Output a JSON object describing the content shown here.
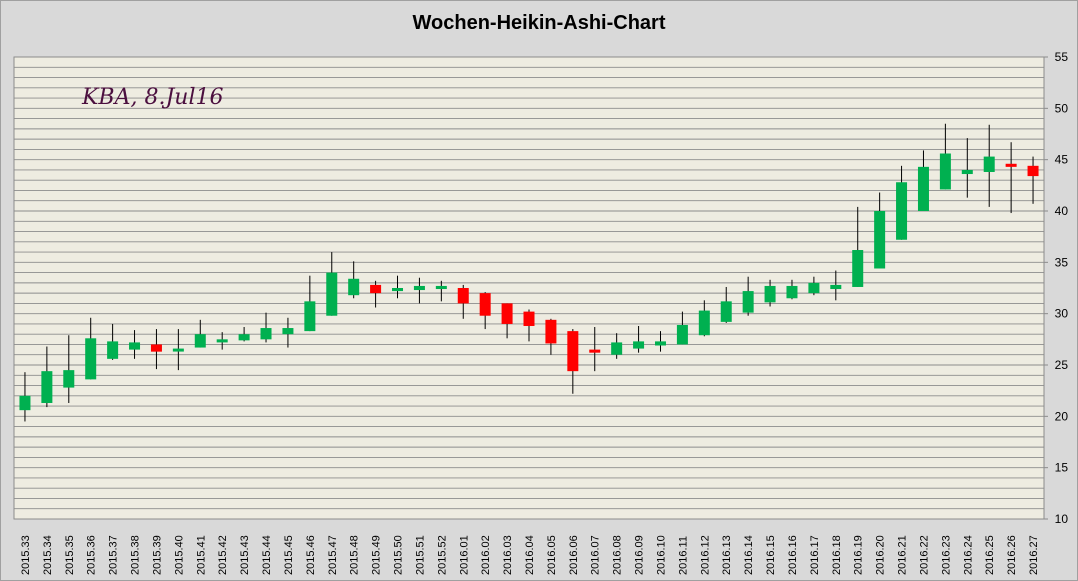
{
  "chart_data": {
    "type": "candlestick",
    "title": "Wochen-Heikin-Ashi-Chart",
    "annotation": "KBA, 8.Jul16",
    "y_axis": {
      "min": 10,
      "max": 55,
      "major_ticks": [
        10,
        15,
        20,
        25,
        30,
        35,
        40,
        45,
        50,
        55
      ],
      "minor_step": 1,
      "position": "right"
    },
    "grid": true,
    "colors": {
      "up": "#00b050",
      "down": "#ff0000",
      "plot_bg": "#eeece1",
      "wick": "#000000"
    },
    "categories": [
      "2015.33",
      "2015.34",
      "2015.35",
      "2015.36",
      "2015.37",
      "2015.38",
      "2015.39",
      "2015.40",
      "2015.41",
      "2015.42",
      "2015.43",
      "2015.44",
      "2015.45",
      "2015.46",
      "2015.47",
      "2015.48",
      "2015.49",
      "2015.50",
      "2015.51",
      "2015.52",
      "2016.01",
      "2016.02",
      "2016.03",
      "2016.04",
      "2016.05",
      "2016.06",
      "2016.07",
      "2016.08",
      "2016.09",
      "2016.10",
      "2016.11",
      "2016.12",
      "2016.13",
      "2016.14",
      "2016.15",
      "2016.16",
      "2016.17",
      "2016.18",
      "2016.19",
      "2016.20",
      "2016.21",
      "2016.22",
      "2016.23",
      "2016.24",
      "2016.25",
      "2016.26",
      "2016.27"
    ],
    "open": [
      20.6,
      21.3,
      22.8,
      23.6,
      25.6,
      26.5,
      27.0,
      26.4,
      26.7,
      27.2,
      27.4,
      27.5,
      28.0,
      28.3,
      29.8,
      31.8,
      32.8,
      32.2,
      32.3,
      32.4,
      32.5,
      32.0,
      31.0,
      30.2,
      29.4,
      28.3,
      26.5,
      26.0,
      26.6,
      26.9,
      27.0,
      27.9,
      29.2,
      30.1,
      31.1,
      31.5,
      32.0,
      32.4,
      32.6,
      34.4,
      37.2,
      40.0,
      42.1,
      43.6,
      43.8,
      44.6,
      44.4
    ],
    "close": [
      22.0,
      24.4,
      24.5,
      27.6,
      27.3,
      27.2,
      26.3,
      26.6,
      28.0,
      27.5,
      28.0,
      28.6,
      28.6,
      31.2,
      34.0,
      33.4,
      32.0,
      32.5,
      32.7,
      32.7,
      31.0,
      29.8,
      29.0,
      28.8,
      27.1,
      24.4,
      26.2,
      27.2,
      27.3,
      27.3,
      28.9,
      30.3,
      31.2,
      32.2,
      32.7,
      32.7,
      33.0,
      32.8,
      36.2,
      40.0,
      42.8,
      44.3,
      45.6,
      44.0,
      45.3,
      44.3,
      43.4
    ],
    "high": [
      24.3,
      26.8,
      27.9,
      29.6,
      29.0,
      28.4,
      28.5,
      28.5,
      29.4,
      28.2,
      28.7,
      30.1,
      29.6,
      33.7,
      36.0,
      35.1,
      33.2,
      33.7,
      33.5,
      33.2,
      32.8,
      32.1,
      31.0,
      30.4,
      29.5,
      28.5,
      28.7,
      28.1,
      28.8,
      28.3,
      30.2,
      31.3,
      32.6,
      33.6,
      33.3,
      33.3,
      33.6,
      34.2,
      40.4,
      41.8,
      44.4,
      45.9,
      48.5,
      47.1,
      48.4,
      46.7,
      45.3
    ],
    "low": [
      19.5,
      20.9,
      21.3,
      23.6,
      25.5,
      25.6,
      24.6,
      24.5,
      26.7,
      26.5,
      27.3,
      27.2,
      26.7,
      28.3,
      29.8,
      31.5,
      30.6,
      31.5,
      31.0,
      31.2,
      29.5,
      28.5,
      27.6,
      27.3,
      26.0,
      22.2,
      24.4,
      25.6,
      26.2,
      26.3,
      27.0,
      27.8,
      29.1,
      29.8,
      30.7,
      31.4,
      31.8,
      31.3,
      32.6,
      34.4,
      37.2,
      40.0,
      42.1,
      41.3,
      40.4,
      39.8,
      40.7
    ]
  }
}
